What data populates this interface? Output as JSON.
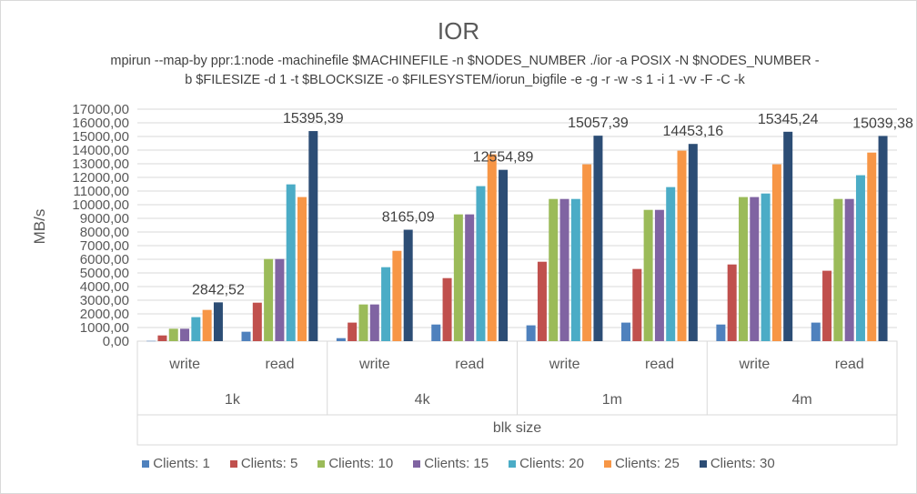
{
  "chart_data": {
    "type": "bar",
    "title": "IOR",
    "subtitle_lines": [
      "mpirun --map-by ppr:1:node -machinefile $MACHINEFILE -n $NODES_NUMBER ./ior -a POSIX -N $NODES_NUMBER -",
      "b $FILESIZE -d 1 -t $BLOCKSIZE -o $FILESYSTEM/iorun_bigfile -e -g -r -w -s 1 -i 1 -vv -F -C -k"
    ],
    "ylabel": "MB/s",
    "xlabel": "blk size",
    "ylim": [
      0,
      17000
    ],
    "ytick_step": 1000,
    "yticks": [
      "0,00",
      "1000,00",
      "2000,00",
      "3000,00",
      "4000,00",
      "5000,00",
      "6000,00",
      "7000,00",
      "8000,00",
      "9000,00",
      "10000,00",
      "11000,00",
      "12000,00",
      "13000,00",
      "14000,00",
      "15000,00",
      "16000,00",
      "17000,00"
    ],
    "grid": true,
    "legend_position": "bottom",
    "groups": [
      "1k",
      "4k",
      "1m",
      "4m"
    ],
    "subcategories": [
      "write",
      "read"
    ],
    "categories": [
      "1k write",
      "1k read",
      "4k write",
      "4k read",
      "1m write",
      "1m read",
      "4m write",
      "4m read"
    ],
    "series": [
      {
        "name": "Clients: 1",
        "color": "#4f81bd",
        "values": [
          20,
          690,
          220,
          1220,
          1160,
          1360,
          1220,
          1360
        ]
      },
      {
        "name": "Clients: 5",
        "color": "#c0504d",
        "values": [
          420,
          2820,
          1360,
          4620,
          5820,
          5290,
          5620,
          5160
        ]
      },
      {
        "name": "Clients: 10",
        "color": "#9bbb59",
        "values": [
          910,
          6020,
          2690,
          9290,
          10420,
          9620,
          10560,
          10420
        ]
      },
      {
        "name": "Clients: 15",
        "color": "#8064a2",
        "values": [
          910,
          6020,
          2690,
          9290,
          10420,
          9620,
          10560,
          10420
        ]
      },
      {
        "name": "Clients: 20",
        "color": "#4bacc6",
        "values": [
          1760,
          11490,
          5420,
          11360,
          10420,
          11290,
          10820,
          12160
        ]
      },
      {
        "name": "Clients: 25",
        "color": "#f79646",
        "values": [
          2290,
          10560,
          6620,
          13690,
          12960,
          13960,
          12960,
          13820
        ]
      },
      {
        "name": "Clients: 30",
        "color": "#2c4d75",
        "values": [
          2842.52,
          15395.39,
          8165.09,
          12554.89,
          15057.39,
          14453.16,
          15345.24,
          15039.38
        ],
        "data_labels": [
          "2842,52",
          "15395,39",
          "8165,09",
          "12554,89",
          "15057,39",
          "14453,16",
          "15345,24",
          "15039,38"
        ]
      }
    ]
  }
}
